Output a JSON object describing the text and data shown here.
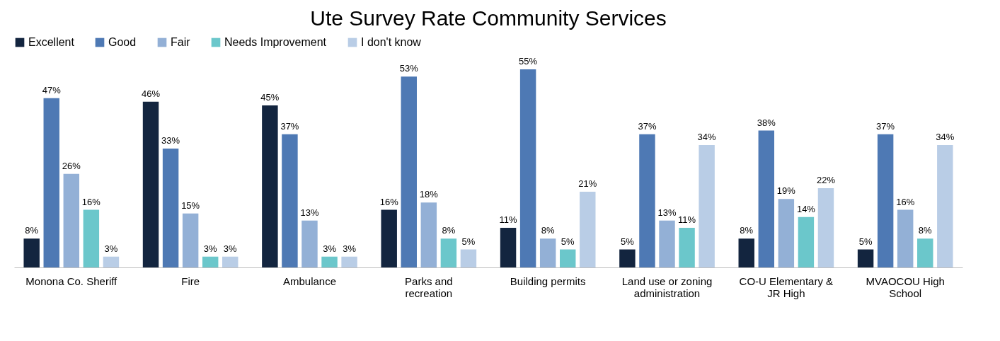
{
  "chart_data": {
    "type": "bar",
    "title": "Ute Survey Rate Community Services",
    "categories": [
      "Monona Co. Sheriff",
      "Fire",
      "Ambulance",
      "Parks and recreation",
      "Building permits",
      "Land use or zoning administration",
      "CO-U Elementary & JR High",
      "MVAOCOU High School"
    ],
    "series": [
      {
        "name": "Excellent",
        "color": "#13253f",
        "values": [
          8,
          46,
          45,
          16,
          11,
          5,
          8,
          5
        ],
        "value_labels": [
          "8%",
          "46%",
          "45%",
          "16%",
          "11%",
          "5%",
          "8%",
          "5%"
        ]
      },
      {
        "name": "Good",
        "color": "#4e79b4",
        "values": [
          47,
          33,
          37,
          53,
          55,
          37,
          38,
          37
        ],
        "value_labels": [
          "47%",
          "33%",
          "37%",
          "53%",
          "55%",
          "37%",
          "38%",
          "37%"
        ]
      },
      {
        "name": "Fair",
        "color": "#93b0d6",
        "values": [
          26,
          15,
          13,
          18,
          8,
          13,
          19,
          16
        ],
        "value_labels": [
          "26%",
          "15%",
          "13%",
          "18%",
          "8%",
          "13%",
          "19%",
          "16%"
        ]
      },
      {
        "name": "Needs Improvement",
        "color": "#6bc7cb",
        "values": [
          16,
          3,
          3,
          8,
          5,
          11,
          14,
          8
        ],
        "value_labels": [
          "16%",
          "3%",
          "3%",
          "8%",
          "5%",
          "11%",
          "14%",
          "8%"
        ]
      },
      {
        "name": "I don't know",
        "color": "#b9cde6",
        "values": [
          3,
          3,
          3,
          5,
          21,
          34,
          22,
          34
        ],
        "value_labels": [
          "3%",
          "3%",
          "3%",
          "5%",
          "21%",
          "34%",
          "22%",
          "34%"
        ]
      }
    ],
    "legend": "top",
    "grid": false,
    "tick_labels": "x"
  }
}
